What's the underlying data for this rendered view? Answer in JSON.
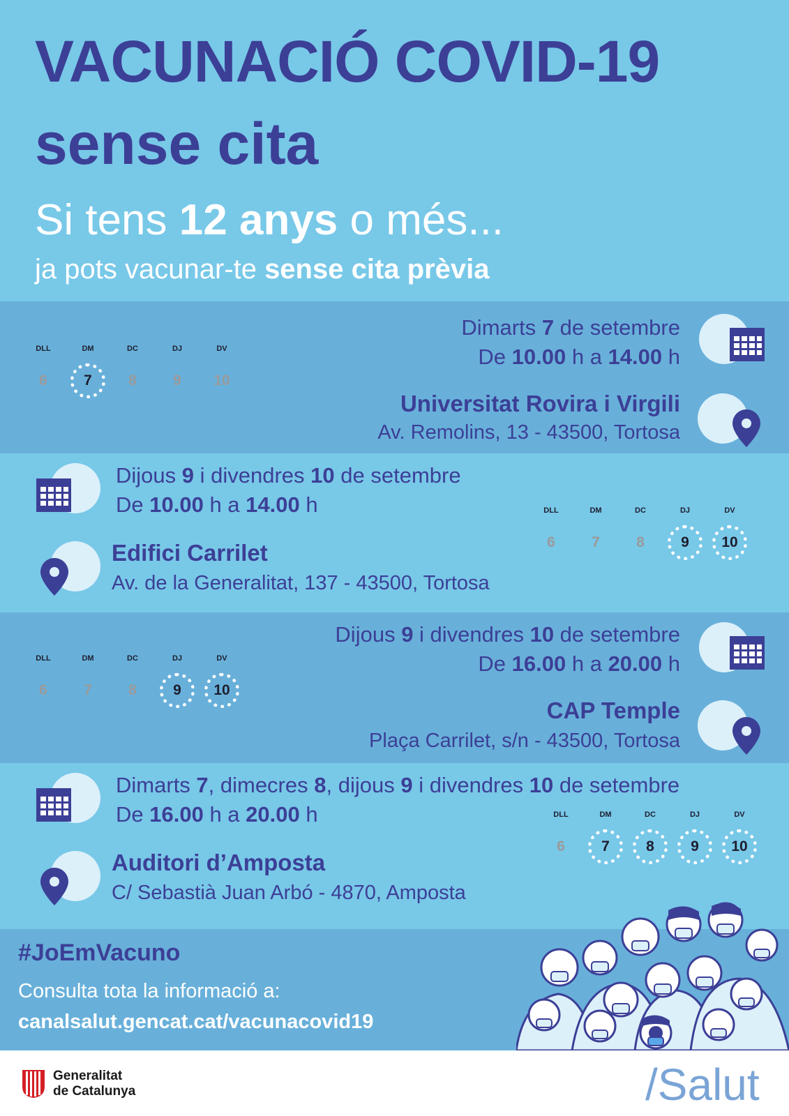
{
  "header": {
    "title_line1": "VACUNACIÓ COVID-19",
    "title_line2": "sense cita",
    "sub1_pre": "Si tens ",
    "sub1_bold": "12 anys",
    "sub1_post": " o més...",
    "sub2_pre": "ja pots vacunar-te ",
    "sub2_bold": "sense cita prèvia"
  },
  "week_labels": [
    "DLL",
    "DM",
    "DC",
    "DJ",
    "DV"
  ],
  "week_days": [
    "6",
    "7",
    "8",
    "9",
    "10"
  ],
  "blocks": [
    {
      "date_parts": [
        "Dimarts ",
        "7",
        " de setembre"
      ],
      "time_parts": [
        "De ",
        "10.00",
        " h a ",
        "14.00",
        " h"
      ],
      "place": "Universitat Rovira i Virgili",
      "address": "Av. Remolins, 13 - 43500, Tortosa",
      "selected_days": [
        "7"
      ]
    },
    {
      "date_parts": [
        "Dijous ",
        "9",
        " i divendres ",
        "10",
        " de setembre"
      ],
      "time_parts": [
        "De ",
        "10.00",
        " h a ",
        "14.00",
        " h"
      ],
      "place": "Edifici Carrilet",
      "address": "Av. de la Generalitat, 137 - 43500, Tortosa",
      "selected_days": [
        "9",
        "10"
      ]
    },
    {
      "date_parts": [
        "Dijous ",
        "9",
        " i divendres ",
        "10",
        " de setembre"
      ],
      "time_parts": [
        "De ",
        "16.00",
        " h a ",
        "20.00",
        " h"
      ],
      "place": "CAP Temple",
      "address": "Plaça Carrilet, s/n - 43500, Tortosa",
      "selected_days": [
        "9",
        "10"
      ]
    },
    {
      "date_parts": [
        "Dimarts ",
        "7",
        ", dimecres ",
        "8",
        ", dijous ",
        "9",
        " i divendres ",
        "10",
        " de setembre"
      ],
      "time_parts": [
        "De ",
        "16.00",
        " h a ",
        "20.00",
        " h"
      ],
      "place": "Auditori d’Amposta",
      "address": "C/ Sebastià Juan Arbó - 4870, Amposta",
      "selected_days": [
        "7",
        "8",
        "9",
        "10"
      ]
    }
  ],
  "footer": {
    "hashtag": "#JoEmVacuno",
    "consulta": "Consulta tota la informació a:",
    "url": "canalsalut.gencat.cat/vacunacovid19"
  },
  "brand": {
    "gen_line1": "Generalitat",
    "gen_line2": "de Catalunya",
    "salut": "/Salut"
  },
  "colors": {
    "primary": "#3c3f96",
    "light_band": "#78c8e8",
    "dark_band": "#68b0da",
    "logo_red": "#d41f26",
    "salut_blue": "#7aa4d6"
  }
}
